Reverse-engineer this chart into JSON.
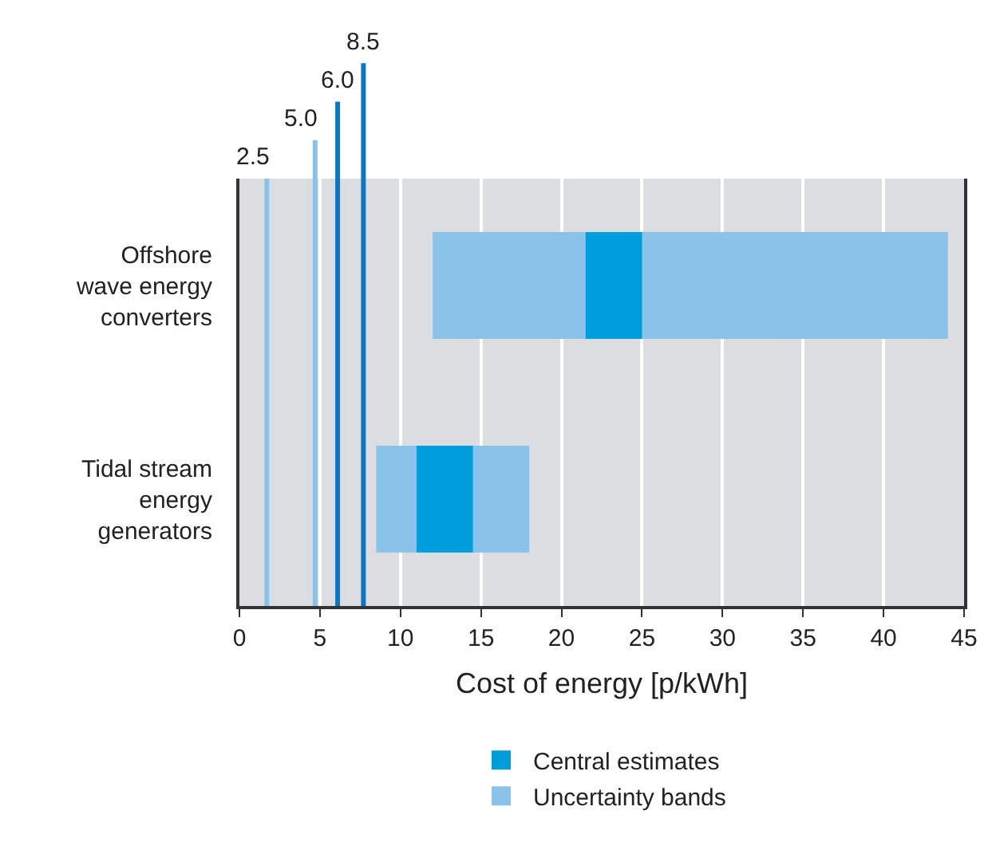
{
  "chart_data": {
    "type": "bar",
    "orientation": "horizontal",
    "xlabel": "Cost of energy [p/kWh]",
    "categories": [
      "Offshore\nwave energy\nconverters",
      "Tidal stream\nenergy\ngenerators"
    ],
    "series": [
      {
        "name": "Uncertainty bands",
        "color": "#8ac3ea",
        "base": [
          12,
          8.5
        ],
        "values": [
          32,
          9.5
        ]
      },
      {
        "name": "Central estimates",
        "color": "#009ddc",
        "base": [
          21.5,
          11
        ],
        "values": [
          3.5,
          3.5
        ]
      }
    ],
    "xlim": [
      0,
      45
    ],
    "xticks": [
      0,
      5,
      10,
      15,
      20,
      25,
      30,
      35,
      40,
      45
    ],
    "grid": "x",
    "legend": "bottom",
    "ref_lines": [
      {
        "axis": "x",
        "value": 1.7,
        "color": "#8ac3ea"
      },
      {
        "axis": "x",
        "value": 4.7,
        "color": "#8ac3ea"
      },
      {
        "axis": "x",
        "value": 6.1,
        "color": "#0a78c2"
      },
      {
        "axis": "x",
        "value": 7.7,
        "color": "#0a78c2"
      }
    ],
    "annotations": [
      "2.5",
      "5.0",
      "6.0",
      "8.5"
    ]
  }
}
